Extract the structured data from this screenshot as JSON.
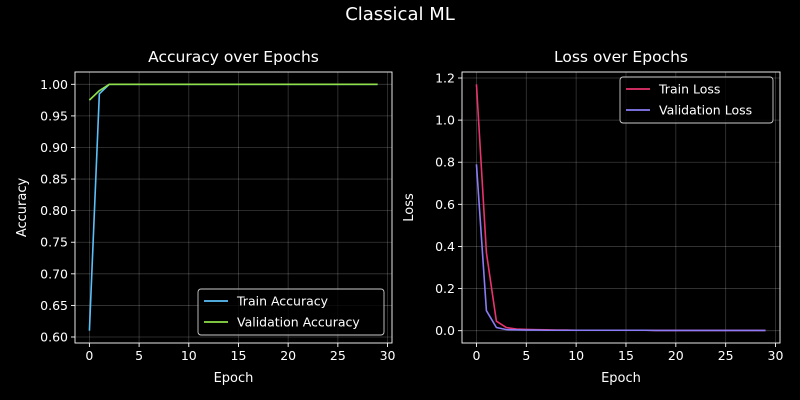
{
  "figure": {
    "title": "Classical ML"
  },
  "chart_data": [
    {
      "type": "line",
      "title": "Accuracy over Epochs",
      "xlabel": "Epoch",
      "ylabel": "Accuracy",
      "xlim": [
        -1.45,
        30.45
      ],
      "ylim": [
        0.5905,
        1.0195
      ],
      "xticks": [
        0,
        5,
        10,
        15,
        20,
        25,
        30
      ],
      "yticks": [
        0.6,
        0.65,
        0.7,
        0.75,
        0.8,
        0.85,
        0.9,
        0.95,
        1.0
      ],
      "ytick_decimals": 2,
      "grid": true,
      "legend": "lower-right",
      "x": [
        0,
        1,
        2,
        3,
        4,
        5,
        6,
        7,
        8,
        9,
        10,
        11,
        12,
        13,
        14,
        15,
        16,
        17,
        18,
        19,
        20,
        21,
        22,
        23,
        24,
        25,
        26,
        27,
        28,
        29
      ],
      "series": [
        {
          "name": "Train Accuracy",
          "color": "#5bc0f8",
          "values": [
            0.61,
            0.985,
            1.0,
            1.0,
            1.0,
            1.0,
            1.0,
            1.0,
            1.0,
            1.0,
            1.0,
            1.0,
            1.0,
            1.0,
            1.0,
            1.0,
            1.0,
            1.0,
            1.0,
            1.0,
            1.0,
            1.0,
            1.0,
            1.0,
            1.0,
            1.0,
            1.0,
            1.0,
            1.0,
            1.0
          ]
        },
        {
          "name": "Validation Accuracy",
          "color": "#8fe04a",
          "values": [
            0.975,
            0.99,
            1.0,
            1.0,
            1.0,
            1.0,
            1.0,
            1.0,
            1.0,
            1.0,
            1.0,
            1.0,
            1.0,
            1.0,
            1.0,
            1.0,
            1.0,
            1.0,
            1.0,
            1.0,
            1.0,
            1.0,
            1.0,
            1.0,
            1.0,
            1.0,
            1.0,
            1.0,
            1.0,
            1.0
          ]
        }
      ]
    },
    {
      "type": "line",
      "title": "Loss over Epochs",
      "xlabel": "Epoch",
      "ylabel": "Loss",
      "xlim": [
        -1.45,
        30.45
      ],
      "ylim": [
        -0.0585,
        1.2285
      ],
      "xticks": [
        0,
        5,
        10,
        15,
        20,
        25,
        30
      ],
      "yticks": [
        0.0,
        0.2,
        0.4,
        0.6,
        0.8,
        1.0,
        1.2
      ],
      "ytick_decimals": 1,
      "grid": true,
      "legend": "upper-right",
      "x": [
        0,
        1,
        2,
        3,
        4,
        5,
        6,
        7,
        8,
        9,
        10,
        11,
        12,
        13,
        14,
        15,
        16,
        17,
        18,
        19,
        20,
        21,
        22,
        23,
        24,
        25,
        26,
        27,
        28,
        29
      ],
      "series": [
        {
          "name": "Train Loss",
          "color": "#e8336e",
          "values": [
            1.17,
            0.37,
            0.045,
            0.015,
            0.008,
            0.006,
            0.005,
            0.004,
            0.003,
            0.003,
            0.002,
            0.002,
            0.002,
            0.002,
            0.002,
            0.002,
            0.002,
            0.002,
            0.001,
            0.001,
            0.001,
            0.001,
            0.001,
            0.001,
            0.001,
            0.001,
            0.001,
            0.001,
            0.001,
            0.001
          ]
        },
        {
          "name": "Validation Loss",
          "color": "#8a7cf5",
          "values": [
            0.79,
            0.095,
            0.015,
            0.005,
            0.004,
            0.003,
            0.003,
            0.002,
            0.002,
            0.002,
            0.002,
            0.002,
            0.002,
            0.002,
            0.002,
            0.002,
            0.002,
            0.002,
            0.001,
            0.001,
            0.001,
            0.001,
            0.001,
            0.001,
            0.001,
            0.001,
            0.001,
            0.001,
            0.001,
            0.001
          ]
        }
      ]
    }
  ]
}
